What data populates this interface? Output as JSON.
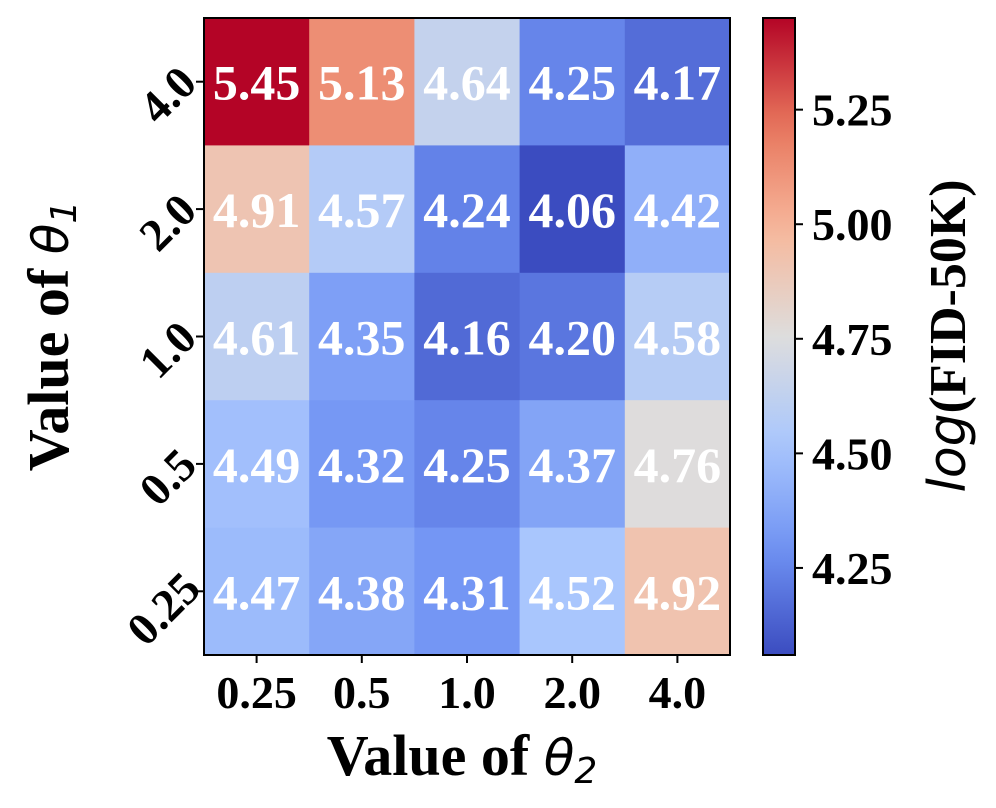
{
  "chart_data": {
    "type": "heatmap",
    "title": "",
    "xlabel": {
      "prefix": "Value of ",
      "symbol": "θ",
      "subscript": "2"
    },
    "ylabel": {
      "prefix": "Value of ",
      "symbol": "θ",
      "subscript": "1"
    },
    "x_categories": [
      "0.25",
      "0.5",
      "1.0",
      "2.0",
      "4.0"
    ],
    "y_categories": [
      "4.0",
      "2.0",
      "1.0",
      "0.5",
      "0.25"
    ],
    "values": [
      [
        5.45,
        5.13,
        4.64,
        4.25,
        4.17
      ],
      [
        4.91,
        4.57,
        4.24,
        4.06,
        4.42
      ],
      [
        4.61,
        4.35,
        4.16,
        4.2,
        4.58
      ],
      [
        4.49,
        4.32,
        4.25,
        4.37,
        4.76
      ],
      [
        4.47,
        4.38,
        4.31,
        4.52,
        4.92
      ]
    ],
    "labels": [
      [
        "5.45",
        "5.13",
        "4.64",
        "4.25",
        "4.17"
      ],
      [
        "4.91",
        "4.57",
        "4.24",
        "4.06",
        "4.42"
      ],
      [
        "4.61",
        "4.35",
        "4.16",
        "4.20",
        "4.58"
      ],
      [
        "4.49",
        "4.32",
        "4.25",
        "4.37",
        "4.76"
      ],
      [
        "4.47",
        "4.38",
        "4.31",
        "4.52",
        "4.92"
      ]
    ],
    "colormap": "coolwarm",
    "colormap_stops": [
      "#3b4cc0",
      "#6f92f3",
      "#aac7fd",
      "#dddddd",
      "#f7b89c",
      "#e7745b",
      "#b40426"
    ],
    "annotation_color": "#ffffff",
    "colorbar": {
      "label_italic": "log",
      "label_rest": "(FID-50K)",
      "vmin": 4.06,
      "vmax": 5.45,
      "ticks": [
        4.25,
        4.5,
        4.75,
        5.0,
        5.25
      ],
      "tick_labels": [
        "4.25",
        "4.50",
        "4.75",
        "5.00",
        "5.25"
      ]
    }
  }
}
